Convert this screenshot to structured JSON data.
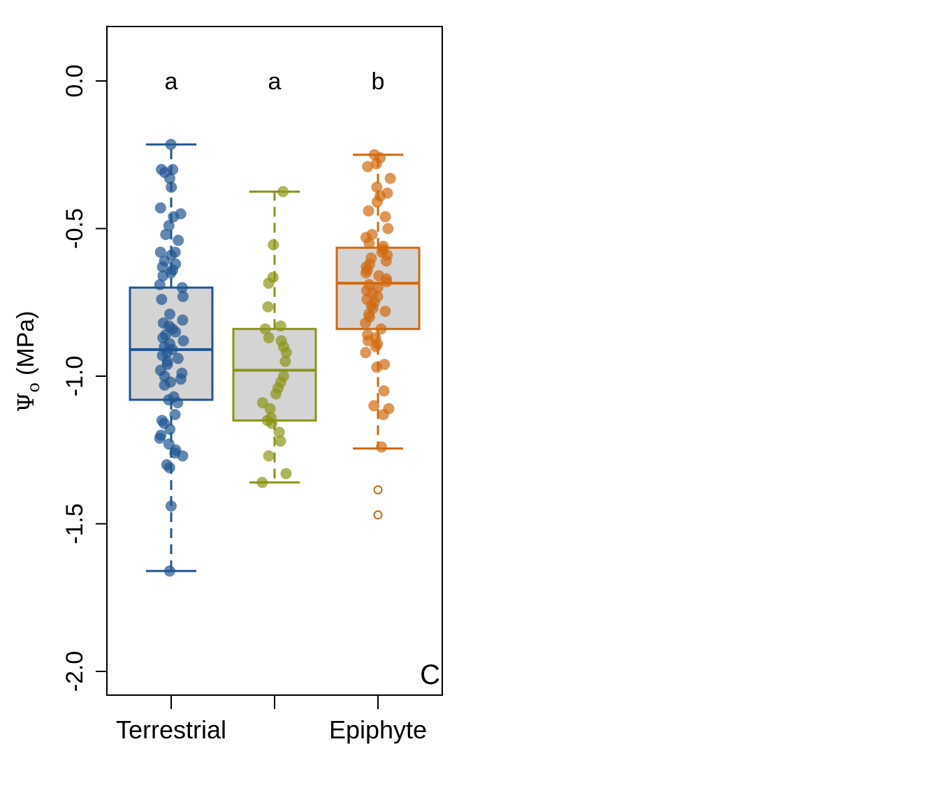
{
  "chart_data": {
    "type": "box",
    "ylabel": "Ψo (MPa)",
    "ylabel_symbol": "Ψ",
    "ylabel_subscript": "o",
    "ylabel_unit": "(MPa)",
    "ylim": [
      -2.08,
      0.18
    ],
    "yticks": [
      0.0,
      -0.5,
      -1.0,
      -1.5,
      -2.0
    ],
    "ytick_labels": [
      "0.0",
      "-0.5",
      "-1.0",
      "-1.5",
      "-2.0"
    ],
    "grid": false,
    "panel_label": "C",
    "categories": [
      "Terrestrial",
      "",
      "Epiphyte"
    ],
    "box_fill": "#d4d4d4",
    "groups": [
      {
        "color": "#1f5591",
        "letter": "a",
        "q1": -1.08,
        "median": -0.91,
        "q3": -0.7,
        "whisker_low": -1.66,
        "whisker_high": -0.215,
        "outliers": [],
        "points": [
          -0.215,
          -0.3,
          -0.3,
          -0.31,
          -0.33,
          -0.36,
          -0.43,
          -0.45,
          -0.46,
          -0.49,
          -0.52,
          -0.54,
          -0.58,
          -0.58,
          -0.59,
          -0.61,
          -0.62,
          -0.63,
          -0.64,
          -0.65,
          -0.66,
          -0.69,
          -0.7,
          -0.73,
          -0.74,
          -0.79,
          -0.81,
          -0.82,
          -0.83,
          -0.84,
          -0.85,
          -0.86,
          -0.87,
          -0.88,
          -0.89,
          -0.9,
          -0.91,
          -0.92,
          -0.93,
          -0.94,
          -0.95,
          -0.96,
          -0.98,
          -0.99,
          -1.0,
          -1.01,
          -1.02,
          -1.03,
          -1.07,
          -1.08,
          -1.09,
          -1.13,
          -1.15,
          -1.16,
          -1.18,
          -1.2,
          -1.21,
          -1.23,
          -1.25,
          -1.26,
          -1.27,
          -1.3,
          -1.31,
          -1.44,
          -1.66
        ]
      },
      {
        "color": "#8b9417",
        "letter": "a",
        "q1": -1.15,
        "median": -0.98,
        "q3": -0.84,
        "whisker_low": -1.36,
        "whisker_high": -0.375,
        "outliers": [],
        "points": [
          -0.375,
          -0.555,
          -0.665,
          -0.685,
          -0.765,
          -0.83,
          -0.84,
          -0.87,
          -0.88,
          -0.9,
          -0.92,
          -0.95,
          -1.0,
          -1.02,
          -1.04,
          -1.06,
          -1.09,
          -1.11,
          -1.14,
          -1.15,
          -1.16,
          -1.19,
          -1.22,
          -1.27,
          -1.33,
          -1.36
        ]
      },
      {
        "color": "#d1690f",
        "letter": "b",
        "q1": -0.84,
        "median": -0.685,
        "q3": -0.565,
        "whisker_low": -1.245,
        "whisker_high": -0.25,
        "outliers": [
          -1.385,
          -1.47
        ],
        "points": [
          -0.25,
          -0.26,
          -0.28,
          -0.29,
          -0.33,
          -0.36,
          -0.38,
          -0.39,
          -0.41,
          -0.44,
          -0.46,
          -0.5,
          -0.52,
          -0.53,
          -0.55,
          -0.56,
          -0.57,
          -0.58,
          -0.59,
          -0.6,
          -0.61,
          -0.62,
          -0.63,
          -0.64,
          -0.65,
          -0.66,
          -0.67,
          -0.68,
          -0.69,
          -0.7,
          -0.71,
          -0.72,
          -0.73,
          -0.74,
          -0.75,
          -0.76,
          -0.77,
          -0.78,
          -0.79,
          -0.8,
          -0.82,
          -0.84,
          -0.86,
          -0.87,
          -0.88,
          -0.89,
          -0.9,
          -0.92,
          -0.96,
          -0.97,
          -1.05,
          -1.1,
          -1.11,
          -1.13,
          -1.24
        ]
      }
    ]
  }
}
